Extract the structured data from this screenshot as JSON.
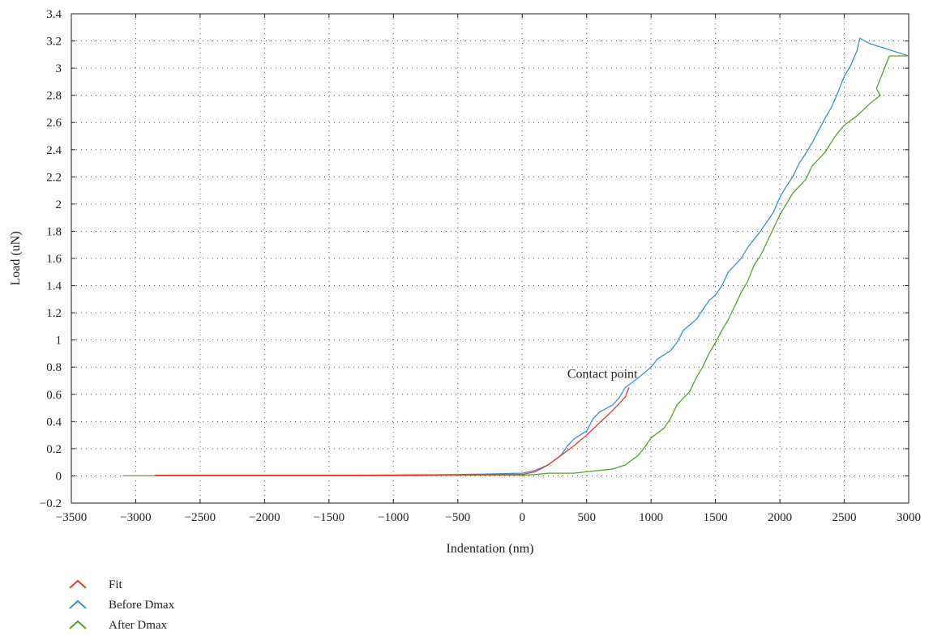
{
  "chart_data": {
    "type": "line",
    "title": "",
    "xlabel": "Indentation (nm)",
    "ylabel": "Load (uN)",
    "xlim": [
      -3500,
      3000
    ],
    "ylim": [
      -0.2,
      3.4
    ],
    "x_ticks": [
      -3500,
      -3000,
      -2500,
      -2000,
      -1500,
      -1000,
      -500,
      0,
      500,
      1000,
      1500,
      2000,
      2500,
      3000
    ],
    "y_ticks": [
      -0.2,
      0,
      0.2,
      0.4,
      0.6,
      0.8,
      1,
      1.2,
      1.4,
      1.6,
      1.8,
      2,
      2.2,
      2.4,
      2.6,
      2.8,
      3,
      3.2,
      3.4
    ],
    "x_tick_labels": [
      "−3500",
      "−3000",
      "−2500",
      "−2000",
      "−1500",
      "−1000",
      "−500",
      "0",
      "500",
      "1000",
      "1500",
      "2000",
      "2500",
      "3000"
    ],
    "y_tick_labels": [
      "−0.2",
      "0",
      "0.2",
      "0.4",
      "0.6",
      "0.8",
      "1",
      "1.2",
      "1.4",
      "1.6",
      "1.8",
      "2",
      "2.2",
      "2.4",
      "2.6",
      "2.8",
      "3",
      "3.2",
      "3.4"
    ],
    "grid": true,
    "legend_position": "bottom-left",
    "annotations": [
      {
        "text": "Contact point",
        "x": 350,
        "y": 0.72
      }
    ],
    "series": [
      {
        "name": "Fit",
        "color": "#e23b2e",
        "points": [
          [
            -2850,
            0.005
          ],
          [
            -1300,
            0.005
          ],
          [
            -1000,
            0.006
          ],
          [
            -500,
            0.008
          ],
          [
            0,
            0.01
          ],
          [
            100,
            0.03
          ],
          [
            200,
            0.08
          ],
          [
            300,
            0.15
          ],
          [
            400,
            0.22
          ],
          [
            500,
            0.3
          ],
          [
            600,
            0.39
          ],
          [
            700,
            0.48
          ],
          [
            800,
            0.58
          ],
          [
            830,
            0.65
          ]
        ]
      },
      {
        "name": "Before Dmax",
        "color": "#3b8fd0",
        "points": [
          [
            -2850,
            0.0
          ],
          [
            -1500,
            0.0
          ],
          [
            -1000,
            0.005
          ],
          [
            -500,
            0.01
          ],
          [
            -200,
            0.015
          ],
          [
            0,
            0.02
          ],
          [
            100,
            0.04
          ],
          [
            200,
            0.08
          ],
          [
            300,
            0.15
          ],
          [
            350,
            0.22
          ],
          [
            400,
            0.27
          ],
          [
            500,
            0.33
          ],
          [
            550,
            0.42
          ],
          [
            600,
            0.47
          ],
          [
            700,
            0.52
          ],
          [
            750,
            0.57
          ],
          [
            800,
            0.65
          ],
          [
            900,
            0.72
          ],
          [
            1000,
            0.8
          ],
          [
            1050,
            0.86
          ],
          [
            1150,
            0.92
          ],
          [
            1200,
            0.98
          ],
          [
            1250,
            1.07
          ],
          [
            1350,
            1.15
          ],
          [
            1400,
            1.22
          ],
          [
            1450,
            1.29
          ],
          [
            1500,
            1.33
          ],
          [
            1550,
            1.4
          ],
          [
            1600,
            1.5
          ],
          [
            1700,
            1.6
          ],
          [
            1750,
            1.68
          ],
          [
            1800,
            1.74
          ],
          [
            1850,
            1.8
          ],
          [
            1900,
            1.87
          ],
          [
            1950,
            1.94
          ],
          [
            2000,
            2.05
          ],
          [
            2050,
            2.13
          ],
          [
            2100,
            2.2
          ],
          [
            2150,
            2.3
          ],
          [
            2200,
            2.37
          ],
          [
            2250,
            2.45
          ],
          [
            2300,
            2.54
          ],
          [
            2350,
            2.63
          ],
          [
            2400,
            2.71
          ],
          [
            2450,
            2.82
          ],
          [
            2500,
            2.94
          ],
          [
            2550,
            3.02
          ],
          [
            2600,
            3.13
          ],
          [
            2620,
            3.22
          ],
          [
            2700,
            3.18
          ],
          [
            3000,
            3.09
          ]
        ]
      },
      {
        "name": "After Dmax",
        "color": "#5aa02c",
        "points": [
          [
            3000,
            3.09
          ],
          [
            2850,
            3.09
          ],
          [
            2800,
            2.97
          ],
          [
            2750,
            2.85
          ],
          [
            2780,
            2.8
          ],
          [
            2700,
            2.74
          ],
          [
            2600,
            2.65
          ],
          [
            2500,
            2.58
          ],
          [
            2430,
            2.5
          ],
          [
            2350,
            2.38
          ],
          [
            2250,
            2.28
          ],
          [
            2200,
            2.18
          ],
          [
            2100,
            2.08
          ],
          [
            2050,
            2.0
          ],
          [
            2000,
            1.92
          ],
          [
            1950,
            1.82
          ],
          [
            1900,
            1.72
          ],
          [
            1850,
            1.62
          ],
          [
            1800,
            1.55
          ],
          [
            1750,
            1.43
          ],
          [
            1700,
            1.35
          ],
          [
            1650,
            1.25
          ],
          [
            1600,
            1.15
          ],
          [
            1550,
            1.07
          ],
          [
            1500,
            0.98
          ],
          [
            1450,
            0.9
          ],
          [
            1400,
            0.8
          ],
          [
            1350,
            0.72
          ],
          [
            1300,
            0.62
          ],
          [
            1200,
            0.52
          ],
          [
            1150,
            0.42
          ],
          [
            1100,
            0.35
          ],
          [
            1000,
            0.28
          ],
          [
            950,
            0.21
          ],
          [
            900,
            0.15
          ],
          [
            800,
            0.08
          ],
          [
            700,
            0.05
          ],
          [
            600,
            0.04
          ],
          [
            500,
            0.03
          ],
          [
            400,
            0.02
          ],
          [
            300,
            0.02
          ],
          [
            200,
            0.02
          ],
          [
            100,
            0.01
          ],
          [
            0,
            0.005
          ],
          [
            -500,
            0.005
          ],
          [
            -1000,
            0.0
          ],
          [
            -2000,
            0.0
          ],
          [
            -3100,
            0.0
          ]
        ]
      }
    ]
  }
}
